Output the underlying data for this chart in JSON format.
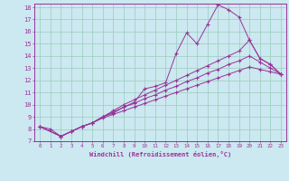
{
  "xlabel": "Windchill (Refroidissement éolien,°C)",
  "ylabel": "",
  "xlim": [
    -0.5,
    23.5
  ],
  "ylim": [
    7,
    18.3
  ],
  "yticks": [
    7,
    8,
    9,
    10,
    11,
    12,
    13,
    14,
    15,
    16,
    17,
    18
  ],
  "xticks": [
    0,
    1,
    2,
    3,
    4,
    5,
    6,
    7,
    8,
    9,
    10,
    11,
    12,
    13,
    14,
    15,
    16,
    17,
    18,
    19,
    20,
    21,
    22,
    23
  ],
  "line_color": "#993399",
  "bg_color": "#cce8f0",
  "grid_color": "#99ccbb",
  "line1_x": [
    0,
    1,
    2,
    3,
    4,
    5,
    6,
    7,
    8,
    9,
    10,
    11,
    12,
    13,
    14,
    15,
    16,
    17,
    18,
    19,
    20,
    21,
    22,
    23
  ],
  "line1_y": [
    8.2,
    8.0,
    7.4,
    7.8,
    8.2,
    8.5,
    9.0,
    9.3,
    9.8,
    10.2,
    11.3,
    11.5,
    11.8,
    14.2,
    15.9,
    15.0,
    16.6,
    18.2,
    17.8,
    17.2,
    15.3,
    13.8,
    13.3,
    12.5
  ],
  "line2_x": [
    0,
    2,
    3,
    4,
    5,
    6,
    7,
    8,
    9,
    10,
    11,
    12,
    13,
    14,
    15,
    16,
    17,
    18,
    19,
    20,
    21,
    22,
    23
  ],
  "line2_y": [
    8.2,
    7.4,
    7.8,
    8.2,
    8.5,
    9.0,
    9.5,
    10.0,
    10.4,
    10.8,
    11.2,
    11.6,
    12.0,
    12.4,
    12.8,
    13.2,
    13.6,
    14.0,
    14.4,
    15.3,
    13.8,
    13.3,
    12.5
  ],
  "line3_x": [
    0,
    2,
    3,
    4,
    5,
    6,
    7,
    8,
    9,
    10,
    11,
    12,
    13,
    14,
    15,
    16,
    17,
    18,
    19,
    20,
    21,
    22,
    23
  ],
  "line3_y": [
    8.2,
    7.4,
    7.8,
    8.2,
    8.5,
    9.0,
    9.4,
    9.8,
    10.1,
    10.5,
    10.8,
    11.2,
    11.5,
    11.9,
    12.2,
    12.6,
    12.9,
    13.3,
    13.6,
    14.0,
    13.5,
    13.0,
    12.5
  ],
  "line4_x": [
    0,
    2,
    3,
    4,
    5,
    6,
    7,
    8,
    9,
    10,
    11,
    12,
    13,
    14,
    15,
    16,
    17,
    18,
    19,
    20,
    21,
    22,
    23
  ],
  "line4_y": [
    8.2,
    7.4,
    7.8,
    8.2,
    8.5,
    8.9,
    9.2,
    9.5,
    9.8,
    10.1,
    10.4,
    10.7,
    11.0,
    11.3,
    11.6,
    11.9,
    12.2,
    12.5,
    12.8,
    13.1,
    12.9,
    12.7,
    12.5
  ]
}
